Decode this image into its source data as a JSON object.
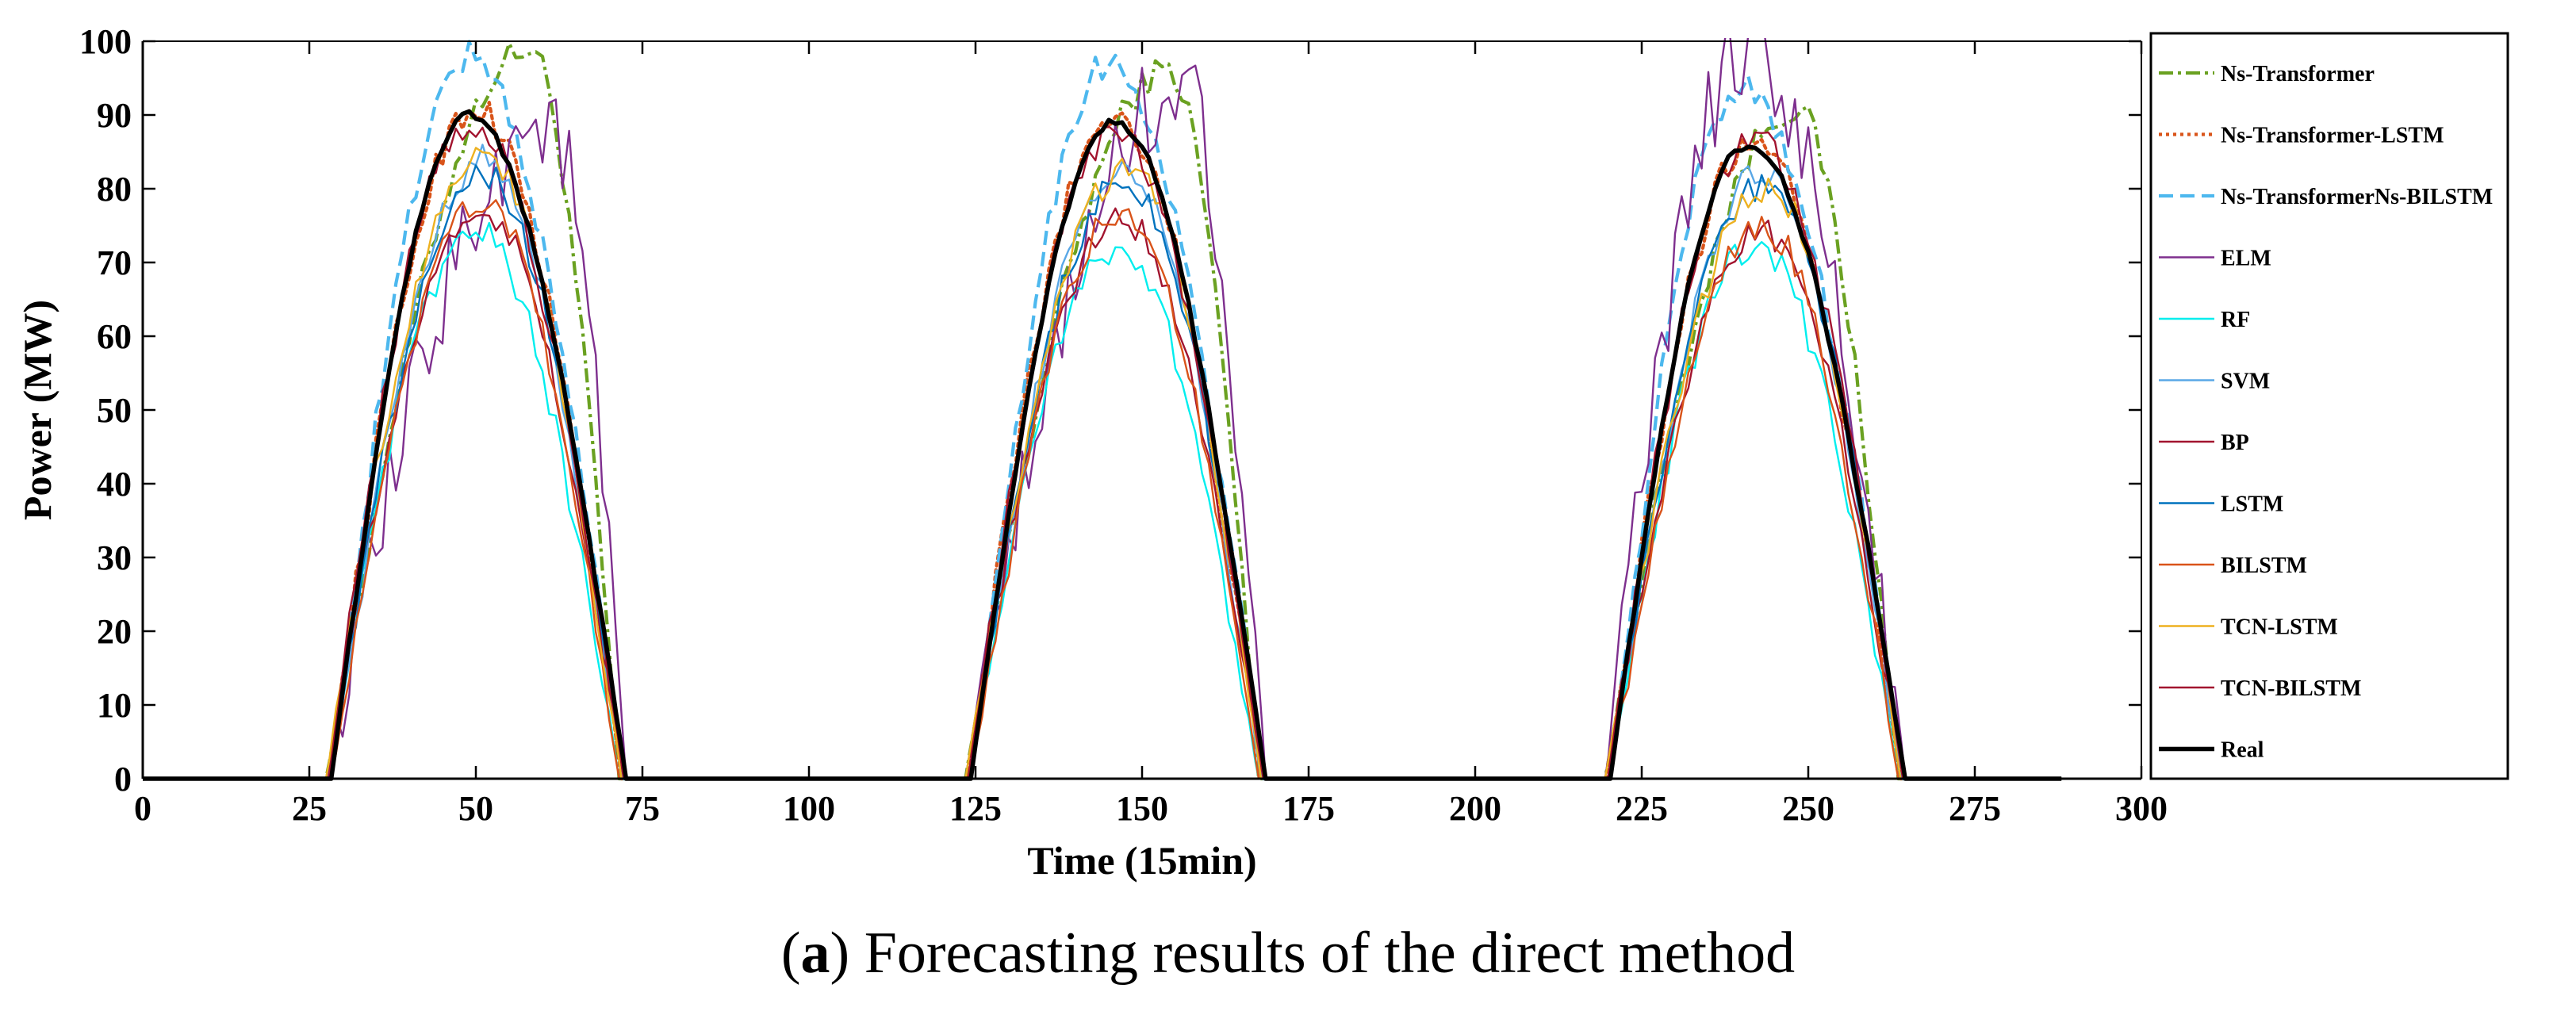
{
  "caption": {
    "prefix": "(",
    "letter": "a",
    "text": ") Forecasting results of the direct method"
  },
  "chart_data": {
    "type": "line",
    "title": "",
    "xlabel": "Time (15min)",
    "ylabel": "Power (MW)",
    "xlim": [
      0,
      300
    ],
    "ylim": [
      0,
      100
    ],
    "xticks": [
      0,
      25,
      50,
      75,
      100,
      125,
      150,
      175,
      200,
      225,
      250,
      275,
      300
    ],
    "yticks": [
      0,
      10,
      20,
      30,
      40,
      50,
      60,
      70,
      80,
      90,
      100
    ],
    "x_range_plotted": [
      0,
      288
    ],
    "grid": false,
    "legend_position": "right",
    "days": [
      {
        "start": 28,
        "end": 72
      },
      {
        "start": 124,
        "end": 168
      },
      {
        "start": 220,
        "end": 264
      }
    ],
    "series": [
      {
        "name": "Ns-Transformer",
        "color": "#6aa121",
        "style": "dashdot",
        "peaks": [
          {
            "x": 58,
            "y": 99
          },
          {
            "x": 154,
            "y": 96
          },
          {
            "x": 248,
            "y": 91
          }
        ]
      },
      {
        "name": "Ns-Transformer-LSTM",
        "color": "#d9541a",
        "style": "dotted",
        "peaks": [
          {
            "x": 50,
            "y": 91
          },
          {
            "x": 146,
            "y": 90
          },
          {
            "x": 242,
            "y": 87
          }
        ]
      },
      {
        "name": "Ns-TransformerNs-BILSTM",
        "color": "#4db8ee",
        "style": "dashed",
        "peaks": [
          {
            "x": 49,
            "y": 98
          },
          {
            "x": 145,
            "y": 97
          },
          {
            "x": 240,
            "y": 94
          }
        ]
      },
      {
        "name": "ELM",
        "color": "#7e2f8e",
        "style": "solid",
        "peaks": [
          {
            "x": 61,
            "y": 89
          },
          {
            "x": 156,
            "y": 94
          },
          {
            "x": 241,
            "y": 99
          }
        ]
      },
      {
        "name": "RF",
        "color": "#00eeee",
        "style": "solid",
        "peaks": [
          {
            "x": 50,
            "y": 74
          },
          {
            "x": 146,
            "y": 72
          },
          {
            "x": 242,
            "y": 72
          }
        ]
      },
      {
        "name": "SVM",
        "color": "#59a7e6",
        "style": "solid",
        "peaks": [
          {
            "x": 51,
            "y": 84
          },
          {
            "x": 147,
            "y": 83
          },
          {
            "x": 243,
            "y": 82
          }
        ]
      },
      {
        "name": "BP",
        "color": "#a2142f",
        "style": "solid",
        "peaks": [
          {
            "x": 51,
            "y": 77
          },
          {
            "x": 147,
            "y": 76
          },
          {
            "x": 243,
            "y": 74
          }
        ]
      },
      {
        "name": "LSTM",
        "color": "#0072bd",
        "style": "solid",
        "peaks": [
          {
            "x": 51,
            "y": 82
          },
          {
            "x": 147,
            "y": 81
          },
          {
            "x": 243,
            "y": 80
          }
        ]
      },
      {
        "name": "BILSTM",
        "color": "#d95319",
        "style": "solid",
        "peaks": [
          {
            "x": 51,
            "y": 78
          },
          {
            "x": 147,
            "y": 77
          },
          {
            "x": 243,
            "y": 75
          }
        ]
      },
      {
        "name": "TCN-LSTM",
        "color": "#edb120",
        "style": "solid",
        "peaks": [
          {
            "x": 51,
            "y": 85
          },
          {
            "x": 148,
            "y": 83
          },
          {
            "x": 244,
            "y": 80
          }
        ]
      },
      {
        "name": "TCN-BILSTM",
        "color": "#a2142f",
        "style": "solid",
        "peaks": [
          {
            "x": 49,
            "y": 89
          },
          {
            "x": 146,
            "y": 88
          },
          {
            "x": 242,
            "y": 87
          }
        ]
      },
      {
        "name": "Real",
        "color": "#000000",
        "style": "solid-bold",
        "peaks": [
          {
            "x": 49,
            "y": 90
          },
          {
            "x": 146,
            "y": 89
          },
          {
            "x": 241,
            "y": 86
          }
        ]
      }
    ]
  }
}
